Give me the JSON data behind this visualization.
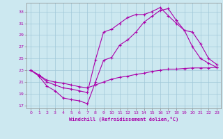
{
  "xlabel": "Windchill (Refroidissement éolien,°C)",
  "bg_color": "#cce8f0",
  "grid_color": "#a0c8d8",
  "line_color": "#aa00aa",
  "spine_color": "#888888",
  "xlim": [
    -0.5,
    23.5
  ],
  "ylim": [
    16.5,
    34.5
  ],
  "yticks": [
    17,
    19,
    21,
    23,
    25,
    27,
    29,
    31,
    33
  ],
  "xticks": [
    0,
    1,
    2,
    3,
    4,
    5,
    6,
    7,
    8,
    9,
    10,
    11,
    12,
    13,
    14,
    15,
    16,
    17,
    18,
    19,
    20,
    21,
    22,
    23
  ],
  "line1_x": [
    0,
    1,
    2,
    3,
    4,
    5,
    6,
    7,
    8,
    9,
    10,
    11,
    12,
    13,
    14,
    15,
    16,
    17,
    18,
    19,
    20,
    21,
    22,
    23
  ],
  "line1_y": [
    23.0,
    22.0,
    20.3,
    19.5,
    18.3,
    18.0,
    17.8,
    17.3,
    21.0,
    24.7,
    25.2,
    27.3,
    28.2,
    29.5,
    31.2,
    32.2,
    33.2,
    33.5,
    31.5,
    29.8,
    27.0,
    25.0,
    24.2,
    23.5
  ],
  "line2_x": [
    0,
    1,
    2,
    3,
    4,
    5,
    6,
    7,
    8,
    9,
    10,
    11,
    12,
    13,
    14,
    15,
    16,
    17,
    18,
    19,
    20,
    21,
    22,
    23
  ],
  "line2_y": [
    23.0,
    22.2,
    21.0,
    20.5,
    20.0,
    19.8,
    19.5,
    19.2,
    24.8,
    29.5,
    30.0,
    31.0,
    32.0,
    32.5,
    32.5,
    33.0,
    33.7,
    32.3,
    31.0,
    29.8,
    29.5,
    27.5,
    25.0,
    24.0
  ],
  "line3_x": [
    0,
    1,
    2,
    3,
    4,
    5,
    6,
    7,
    8,
    9,
    10,
    11,
    12,
    13,
    14,
    15,
    16,
    17,
    18,
    19,
    20,
    21,
    22,
    23
  ],
  "line3_y": [
    23.0,
    22.2,
    21.3,
    21.0,
    20.8,
    20.5,
    20.2,
    20.0,
    20.5,
    21.0,
    21.5,
    21.8,
    22.0,
    22.3,
    22.5,
    22.8,
    23.0,
    23.2,
    23.2,
    23.3,
    23.4,
    23.4,
    23.4,
    23.5
  ]
}
